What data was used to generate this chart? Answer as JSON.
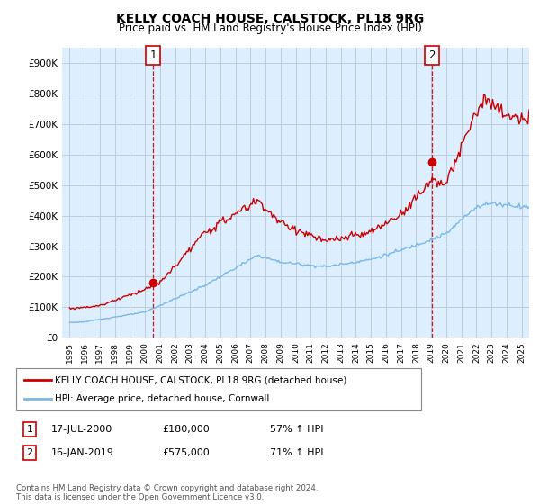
{
  "title": "KELLY COACH HOUSE, CALSTOCK, PL18 9RG",
  "subtitle": "Price paid vs. HM Land Registry's House Price Index (HPI)",
  "ylim": [
    0,
    950000
  ],
  "yticks": [
    0,
    100000,
    200000,
    300000,
    400000,
    500000,
    600000,
    700000,
    800000,
    900000
  ],
  "ytick_labels": [
    "£0",
    "£100K",
    "£200K",
    "£300K",
    "£400K",
    "£500K",
    "£600K",
    "£700K",
    "£800K",
    "£900K"
  ],
  "sale1": {
    "date_num": 2000.54,
    "price": 180000,
    "label": "1",
    "date_str": "17-JUL-2000",
    "price_str": "£180,000",
    "hpi_pct": "57% ↑ HPI"
  },
  "sale2": {
    "date_num": 2019.04,
    "price": 575000,
    "label": "2",
    "date_str": "16-JAN-2019",
    "price_str": "£575,000",
    "hpi_pct": "71% ↑ HPI"
  },
  "hpi_color": "#7ab8e8",
  "price_color": "#cc0000",
  "vline_color": "#cc0000",
  "background_color": "#ffffff",
  "plot_bg_color": "#ddeeff",
  "grid_color": "#bbccdd",
  "legend_label_red": "KELLY COACH HOUSE, CALSTOCK, PL18 9RG (detached house)",
  "legend_label_blue": "HPI: Average price, detached house, Cornwall",
  "footnote": "Contains HM Land Registry data © Crown copyright and database right 2024.\nThis data is licensed under the Open Government Licence v3.0.",
  "xlim_start": 1994.5,
  "xlim_end": 2025.5
}
